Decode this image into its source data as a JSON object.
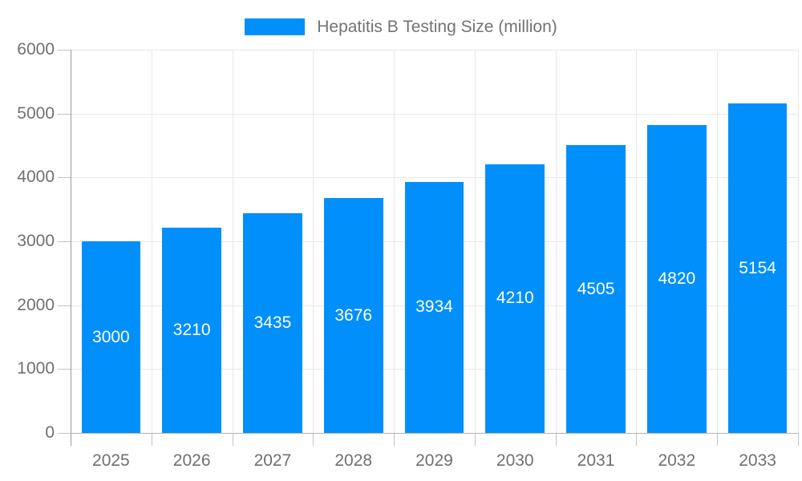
{
  "legend": {
    "label": "Hepatitis B Testing Size (million)"
  },
  "colors": {
    "bar": "#008FFB",
    "bar_label": "#ffffff",
    "grid": "#e8e8e8",
    "axis_y_line": "#9a9a9a",
    "axis_x_line": "#b3b3b3",
    "tick": "#c4c4c4",
    "axis_label": "#6e7072",
    "legend_label": "#737373"
  },
  "chart_data": {
    "type": "bar",
    "title": "Hepatitis B Testing Size (million)",
    "categories": [
      "2025",
      "2026",
      "2027",
      "2028",
      "2029",
      "2030",
      "2031",
      "2032",
      "2033"
    ],
    "series": [
      {
        "name": "Hepatitis B Testing Size (million)",
        "values": [
          3000,
          3210,
          3435,
          3676,
          3934,
          4210,
          4505,
          4820,
          5154
        ]
      }
    ],
    "values": [
      3000,
      3210,
      3435,
      3676,
      3934,
      4210,
      4505,
      4820,
      5154
    ],
    "data_labels": [
      "3000",
      "3210",
      "3435",
      "3676",
      "3934",
      "4210",
      "4505",
      "4820",
      "5154"
    ],
    "xlabel": "",
    "ylabel": "",
    "ylim": [
      0,
      6000
    ],
    "yticks": [
      0,
      1000,
      2000,
      3000,
      4000,
      5000,
      6000
    ],
    "ytick_labels": [
      "0",
      "1000",
      "2000",
      "3000",
      "4000",
      "5000",
      "6000"
    ],
    "grid": true,
    "legend_position": "top",
    "value_label_position": "center-of-bar"
  }
}
